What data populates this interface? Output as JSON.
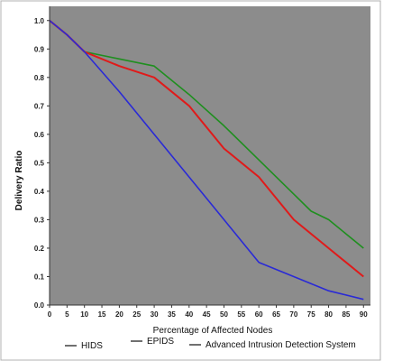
{
  "chart_data": {
    "type": "line",
    "title": "",
    "xlabel": "Percentage of Affected Nodes",
    "ylabel": "Delivery Ratio",
    "xlim": [
      0,
      92
    ],
    "ylim": [
      0,
      1.05
    ],
    "x_ticks": [
      "0",
      "5",
      "10",
      "15",
      "20",
      "25",
      "30",
      "35",
      "40",
      "45",
      "50",
      "55",
      "60",
      "65",
      "70",
      "75",
      "80",
      "85",
      "90"
    ],
    "y_ticks": [
      "0.0",
      "0.1",
      "0.2",
      "0.3",
      "0.4",
      "0.5",
      "0.6",
      "0.7",
      "0.8",
      "0.9",
      "1.0"
    ],
    "grid": false,
    "background": "#8c8c8c",
    "legend_position": "bottom",
    "series": [
      {
        "name": "HIDS",
        "color": "#2a2ad6",
        "x": [
          0,
          5,
          10,
          20,
          30,
          40,
          50,
          60,
          70,
          80,
          90
        ],
        "y": [
          1.0,
          0.95,
          0.89,
          0.75,
          0.6,
          0.45,
          0.3,
          0.15,
          0.1,
          0.05,
          0.02
        ]
      },
      {
        "name": "EPIDS",
        "color": "#e01a1a",
        "x": [
          0,
          5,
          10,
          20,
          30,
          40,
          50,
          60,
          70,
          80,
          90
        ],
        "y": [
          1.0,
          0.95,
          0.89,
          0.84,
          0.8,
          0.7,
          0.55,
          0.45,
          0.3,
          0.2,
          0.1
        ]
      },
      {
        "name": "Advanced Intrusion Detection System",
        "color": "#1f8f1f",
        "x": [
          0,
          5,
          10,
          20,
          30,
          40,
          50,
          60,
          70,
          75,
          80,
          90
        ],
        "y": [
          1.0,
          0.95,
          0.89,
          0.865,
          0.84,
          0.74,
          0.63,
          0.51,
          0.39,
          0.33,
          0.3,
          0.2
        ]
      }
    ]
  }
}
